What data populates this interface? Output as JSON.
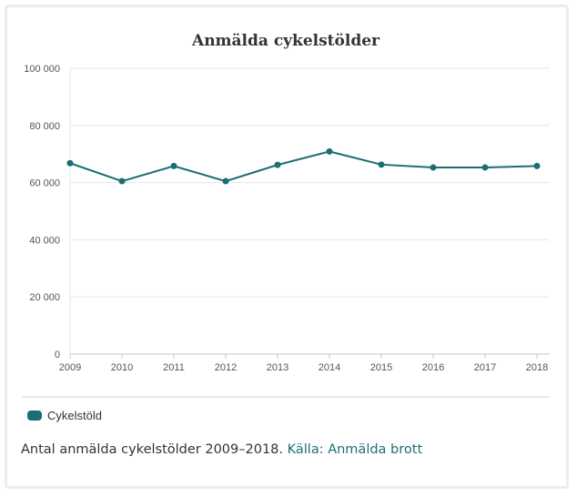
{
  "chart_data": {
    "type": "line",
    "title": "Anmälda cykelstölder",
    "xlabel": "",
    "ylabel": "",
    "x": [
      "2009",
      "2010",
      "2011",
      "2012",
      "2013",
      "2014",
      "2015",
      "2016",
      "2017",
      "2018"
    ],
    "series": [
      {
        "name": "Cykelstöld",
        "values": [
          66800,
          60500,
          65800,
          60500,
          66200,
          70900,
          66300,
          65300,
          65300,
          65800
        ]
      }
    ],
    "ylim": [
      0,
      100000
    ],
    "yticks": [
      0,
      20000,
      40000,
      60000,
      80000,
      100000
    ],
    "ytick_labels": [
      "0",
      "20 000",
      "40 000",
      "60 000",
      "80 000",
      "100 000"
    ],
    "grid": true,
    "legend_position": "bottom-left"
  },
  "colors": {
    "series": "#1a6e75",
    "grid": "#e6e6e6",
    "axis": "#c6c6c6",
    "link": "#1f6e75"
  },
  "caption": {
    "text": "Antal anmälda cykelstölder 2009–2018. ",
    "source_link": "Källa: Anmälda brott"
  }
}
